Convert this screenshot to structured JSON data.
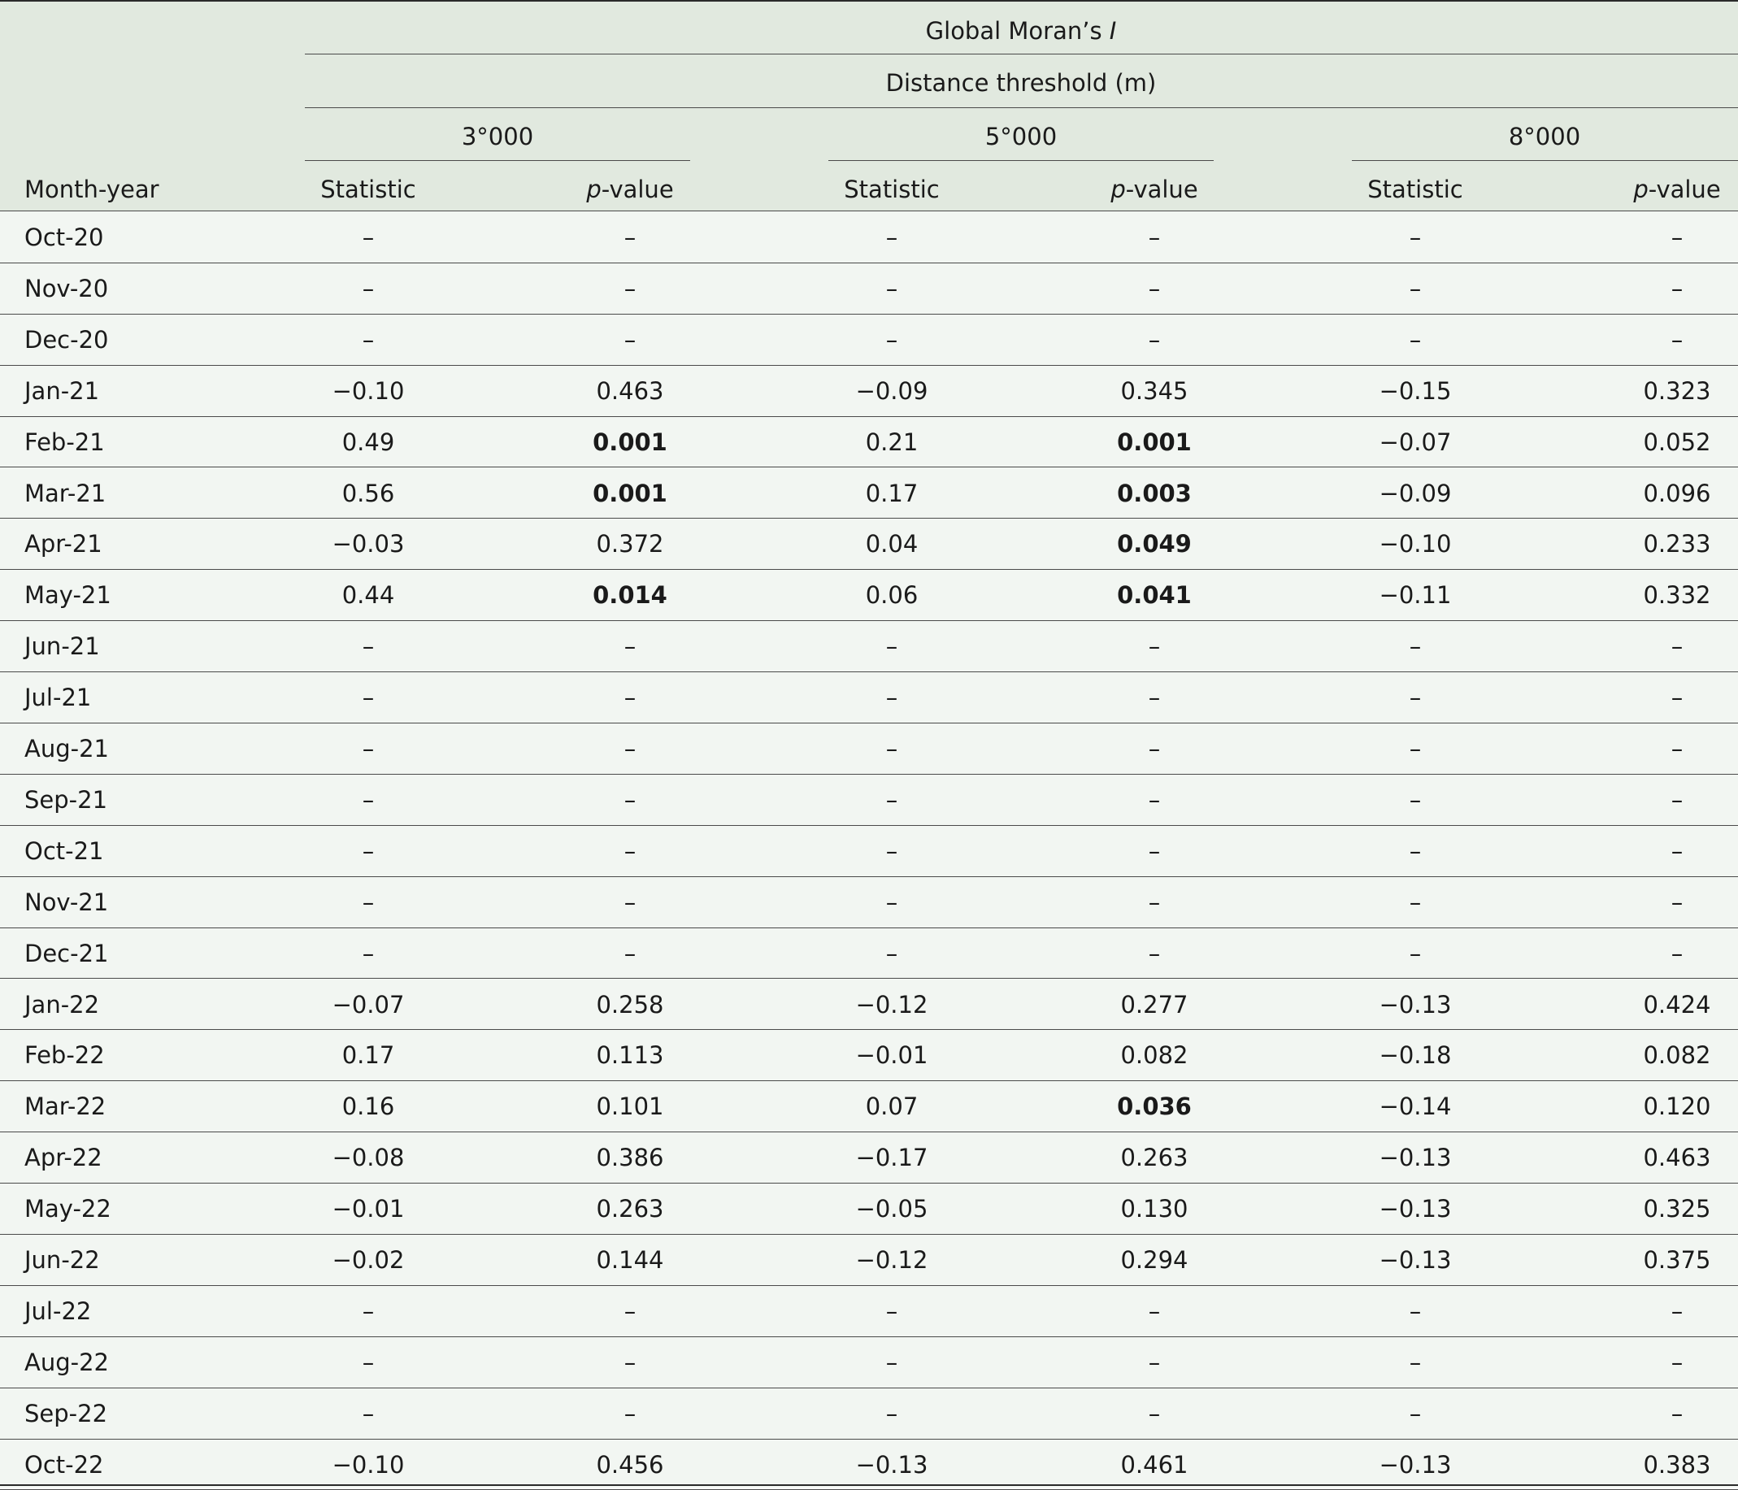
{
  "header": {
    "group_title": "Global Moran’s ",
    "group_title_italic": "I",
    "subgroup_title": "Distance threshold (m)",
    "thresholds": [
      "3°000",
      "5°000",
      "8°000"
    ],
    "row_header": "Month-year",
    "statistic_label": "Statistic",
    "pvalue_italic": "p",
    "pvalue_suffix": "-value"
  },
  "rows": [
    {
      "month": "Oct-20",
      "cells": [
        "–",
        "–",
        "–",
        "–",
        "–",
        "–"
      ],
      "bold": []
    },
    {
      "month": "Nov-20",
      "cells": [
        "–",
        "–",
        "–",
        "–",
        "–",
        "–"
      ],
      "bold": []
    },
    {
      "month": "Dec-20",
      "cells": [
        "–",
        "–",
        "–",
        "–",
        "–",
        "–"
      ],
      "bold": []
    },
    {
      "month": "Jan-21",
      "cells": [
        "−0.10",
        "0.463",
        "−0.09",
        "0.345",
        "−0.15",
        "0.323"
      ],
      "bold": []
    },
    {
      "month": "Feb-21",
      "cells": [
        "0.49",
        "0.001",
        "0.21",
        "0.001",
        "−0.07",
        "0.052"
      ],
      "bold": [
        1,
        3
      ]
    },
    {
      "month": "Mar-21",
      "cells": [
        "0.56",
        "0.001",
        "0.17",
        "0.003",
        "−0.09",
        "0.096"
      ],
      "bold": [
        1,
        3
      ]
    },
    {
      "month": "Apr-21",
      "cells": [
        "−0.03",
        "0.372",
        "0.04",
        "0.049",
        "−0.10",
        "0.233"
      ],
      "bold": [
        3
      ]
    },
    {
      "month": "May-21",
      "cells": [
        "0.44",
        "0.014",
        "0.06",
        "0.041",
        "−0.11",
        "0.332"
      ],
      "bold": [
        1,
        3
      ]
    },
    {
      "month": "Jun-21",
      "cells": [
        "–",
        "–",
        "–",
        "–",
        "–",
        "–"
      ],
      "bold": []
    },
    {
      "month": "Jul-21",
      "cells": [
        "–",
        "–",
        "–",
        "–",
        "–",
        "–"
      ],
      "bold": []
    },
    {
      "month": "Aug-21",
      "cells": [
        "–",
        "–",
        "–",
        "–",
        "–",
        "–"
      ],
      "bold": []
    },
    {
      "month": "Sep-21",
      "cells": [
        "–",
        "–",
        "–",
        "–",
        "–",
        "–"
      ],
      "bold": []
    },
    {
      "month": "Oct-21",
      "cells": [
        "–",
        "–",
        "–",
        "–",
        "–",
        "–"
      ],
      "bold": []
    },
    {
      "month": "Nov-21",
      "cells": [
        "–",
        "–",
        "–",
        "–",
        "–",
        "–"
      ],
      "bold": []
    },
    {
      "month": "Dec-21",
      "cells": [
        "–",
        "–",
        "–",
        "–",
        "–",
        "–"
      ],
      "bold": []
    },
    {
      "month": "Jan-22",
      "cells": [
        "−0.07",
        "0.258",
        "−0.12",
        "0.277",
        "−0.13",
        "0.424"
      ],
      "bold": []
    },
    {
      "month": "Feb-22",
      "cells": [
        "0.17",
        "0.113",
        "−0.01",
        "0.082",
        "−0.18",
        "0.082"
      ],
      "bold": []
    },
    {
      "month": "Mar-22",
      "cells": [
        "0.16",
        "0.101",
        "0.07",
        "0.036",
        "−0.14",
        "0.120"
      ],
      "bold": [
        3
      ]
    },
    {
      "month": "Apr-22",
      "cells": [
        "−0.08",
        "0.386",
        "−0.17",
        "0.263",
        "−0.13",
        "0.463"
      ],
      "bold": []
    },
    {
      "month": "May-22",
      "cells": [
        "−0.01",
        "0.263",
        "−0.05",
        "0.130",
        "−0.13",
        "0.325"
      ],
      "bold": []
    },
    {
      "month": "Jun-22",
      "cells": [
        "−0.02",
        "0.144",
        "−0.12",
        "0.294",
        "−0.13",
        "0.375"
      ],
      "bold": []
    },
    {
      "month": "Jul-22",
      "cells": [
        "–",
        "–",
        "–",
        "–",
        "–",
        "–"
      ],
      "bold": []
    },
    {
      "month": "Aug-22",
      "cells": [
        "–",
        "–",
        "–",
        "–",
        "–",
        "–"
      ],
      "bold": []
    },
    {
      "month": "Sep-22",
      "cells": [
        "–",
        "–",
        "–",
        "–",
        "–",
        "–"
      ],
      "bold": []
    },
    {
      "month": "Oct-22",
      "cells": [
        "−0.10",
        "0.456",
        "−0.13",
        "0.461",
        "−0.13",
        "0.383"
      ],
      "bold": []
    }
  ]
}
